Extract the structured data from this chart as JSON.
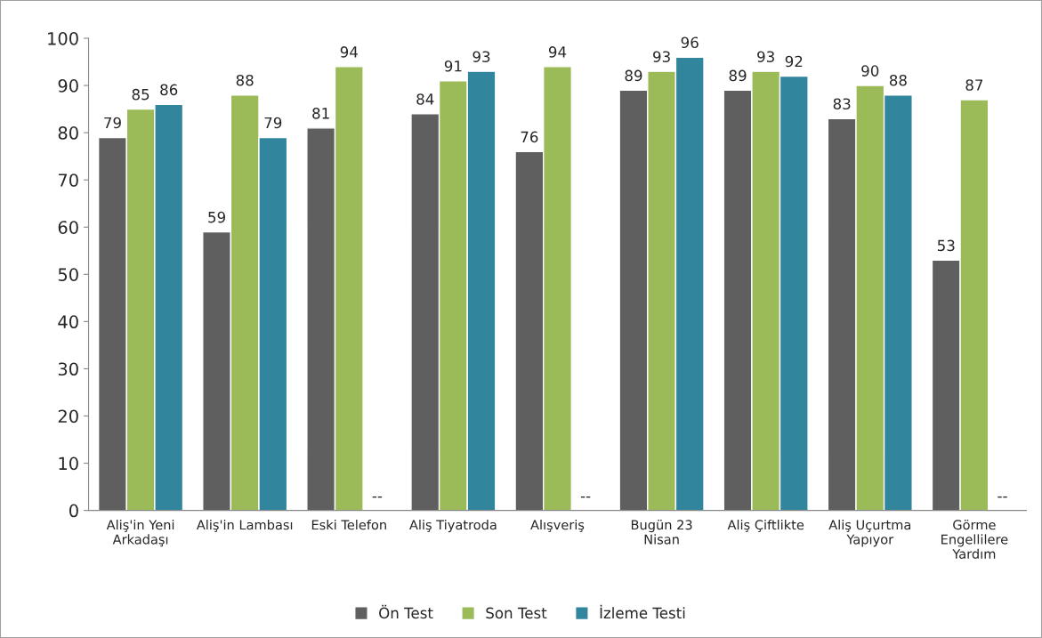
{
  "chart_data": {
    "type": "bar",
    "categories": [
      "Aliş'in Yeni\nArkadaşı",
      "Aliş'in Lambası",
      "Eski Telefon",
      "Aliş Tiyatroda",
      "Alışveriş",
      "Bugün 23\nNisan",
      "Aliş Çiftlikte",
      "Aliş Uçurtma\nYapıyor",
      "Görme\nEngellilere\nYardım"
    ],
    "series": [
      {
        "name": "Ön Test",
        "color": "#5f5f5f",
        "values": [
          79,
          59,
          81,
          84,
          76,
          89,
          89,
          83,
          53
        ],
        "value_labels": [
          "79",
          "59",
          "81",
          "84",
          "76",
          "89",
          "89",
          "83",
          "53"
        ]
      },
      {
        "name": "Son Test",
        "color": "#9bbb59",
        "values": [
          85,
          88,
          94,
          91,
          94,
          93,
          93,
          90,
          87
        ],
        "value_labels": [
          "85",
          "88",
          "94",
          "91",
          "94",
          "93",
          "93",
          "90",
          "87"
        ]
      },
      {
        "name": "İzleme Testi",
        "color": "#31859c",
        "values": [
          86,
          79,
          null,
          93,
          null,
          96,
          92,
          88,
          null
        ],
        "value_labels": [
          "86",
          "79",
          "--",
          "93",
          "--",
          "96",
          "92",
          "88",
          "--"
        ]
      }
    ],
    "ylim": [
      0,
      100
    ],
    "yticks": [
      0,
      10,
      20,
      30,
      40,
      50,
      60,
      70,
      80,
      90,
      100
    ],
    "grid": false,
    "legend": "bottom"
  }
}
